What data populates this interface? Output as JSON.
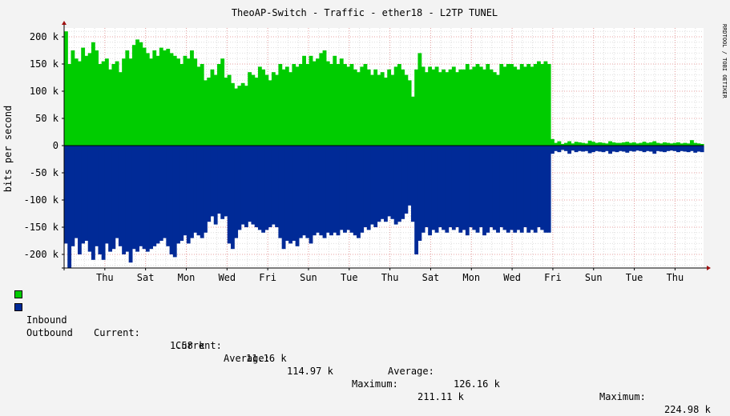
{
  "title": "TheoAP-Switch - Traffic - ether18 - L2TP TUNEL",
  "watermark": "RRDTOOL / TOBI OETIKER",
  "colors": {
    "background": "#f3f3f3",
    "canvas": "#ffffff",
    "grid_minor": "#dedede",
    "grid_major": "#e7a0a0",
    "inbound": "#00cc00",
    "outbound": "#002a97",
    "axis_arrow": "#a01010"
  },
  "chart_data": {
    "type": "area",
    "ylabel": "bits per second",
    "ylim": [
      -225000,
      225000
    ],
    "y_ticks": [
      {
        "value": 200000,
        "label": "200 k"
      },
      {
        "value": 150000,
        "label": "150 k"
      },
      {
        "value": 100000,
        "label": "100 k"
      },
      {
        "value": 50000,
        "label": "50 k"
      },
      {
        "value": 0,
        "label": "0"
      },
      {
        "value": -50000,
        "label": "-50 k"
      },
      {
        "value": -100000,
        "label": "-100 k"
      },
      {
        "value": -150000,
        "label": "-150 k"
      },
      {
        "value": -200000,
        "label": "-200 k"
      }
    ],
    "x_range_days": 15.7,
    "x_ticks": [
      {
        "day": 1,
        "label": "Thu"
      },
      {
        "day": 2,
        "label": "Sat"
      },
      {
        "day": 3,
        "label": "Mon"
      },
      {
        "day": 4,
        "label": "Wed"
      },
      {
        "day": 5,
        "label": "Fri"
      },
      {
        "day": 6,
        "label": "Sun"
      },
      {
        "day": 7,
        "label": "Tue"
      },
      {
        "day": 8,
        "label": "Thu"
      },
      {
        "day": 9,
        "label": "Sat"
      },
      {
        "day": 10,
        "label": "Mon"
      },
      {
        "day": 11,
        "label": "Wed"
      },
      {
        "day": 12,
        "label": "Fri"
      },
      {
        "day": 13,
        "label": "Sun"
      },
      {
        "day": 14,
        "label": "Tue"
      },
      {
        "day": 15,
        "label": "Thu"
      }
    ],
    "series": [
      {
        "name": "Inbound",
        "direction": "up",
        "values": [
          210000,
          150000,
          175000,
          160000,
          155000,
          180000,
          165000,
          170000,
          190000,
          175000,
          150000,
          155000,
          160000,
          140000,
          150000,
          155000,
          135000,
          160000,
          175000,
          160000,
          185000,
          195000,
          190000,
          180000,
          170000,
          160000,
          175000,
          165000,
          180000,
          175000,
          178000,
          170000,
          165000,
          160000,
          150000,
          165000,
          160000,
          175000,
          160000,
          145000,
          150000,
          120000,
          125000,
          140000,
          130000,
          150000,
          160000,
          125000,
          130000,
          115000,
          105000,
          110000,
          115000,
          110000,
          135000,
          130000,
          125000,
          145000,
          140000,
          130000,
          120000,
          135000,
          130000,
          150000,
          140000,
          145000,
          135000,
          150000,
          145000,
          150000,
          165000,
          150000,
          165000,
          155000,
          160000,
          170000,
          175000,
          155000,
          150000,
          165000,
          150000,
          160000,
          150000,
          145000,
          150000,
          140000,
          135000,
          145000,
          150000,
          140000,
          130000,
          140000,
          130000,
          135000,
          125000,
          140000,
          130000,
          145000,
          150000,
          140000,
          130000,
          120000,
          90000,
          140000,
          170000,
          145000,
          135000,
          145000,
          140000,
          145000,
          135000,
          140000,
          135000,
          140000,
          145000,
          135000,
          140000,
          140000,
          150000,
          140000,
          145000,
          150000,
          145000,
          140000,
          150000,
          140000,
          135000,
          130000,
          150000,
          145000,
          150000,
          150000,
          145000,
          140000,
          150000,
          145000,
          150000,
          145000,
          150000,
          155000,
          150000,
          155000,
          150000,
          12000,
          5000,
          8000,
          3000,
          5000,
          8000,
          4000,
          7000,
          6000,
          5000,
          4000,
          9000,
          7000,
          5000,
          6000,
          5000,
          4000,
          8000,
          6000,
          5000,
          5000,
          6000,
          7000,
          5000,
          6000,
          4000,
          5000,
          7000,
          5000,
          6000,
          8000,
          5000,
          4000,
          6000,
          5000,
          4000,
          5000,
          6000,
          4000,
          5000,
          4000,
          10000,
          5000,
          4000,
          3000
        ],
        "current": "1.58 k",
        "average": "114.97 k",
        "maximum": "211.11 k"
      },
      {
        "name": "Outbound",
        "direction": "down",
        "values": [
          180000,
          225000,
          185000,
          170000,
          200000,
          180000,
          175000,
          195000,
          210000,
          185000,
          200000,
          210000,
          180000,
          195000,
          190000,
          170000,
          185000,
          200000,
          195000,
          215000,
          190000,
          195000,
          185000,
          190000,
          195000,
          190000,
          185000,
          180000,
          175000,
          170000,
          185000,
          200000,
          205000,
          180000,
          175000,
          165000,
          180000,
          170000,
          160000,
          165000,
          170000,
          160000,
          140000,
          130000,
          145000,
          125000,
          135000,
          130000,
          180000,
          190000,
          170000,
          155000,
          145000,
          150000,
          140000,
          145000,
          150000,
          155000,
          160000,
          155000,
          150000,
          145000,
          150000,
          170000,
          190000,
          175000,
          180000,
          175000,
          185000,
          170000,
          165000,
          170000,
          180000,
          165000,
          160000,
          165000,
          170000,
          160000,
          165000,
          160000,
          165000,
          155000,
          160000,
          155000,
          160000,
          165000,
          170000,
          160000,
          150000,
          155000,
          145000,
          150000,
          140000,
          135000,
          140000,
          130000,
          135000,
          145000,
          140000,
          135000,
          125000,
          110000,
          140000,
          200000,
          175000,
          160000,
          150000,
          165000,
          155000,
          160000,
          150000,
          155000,
          160000,
          150000,
          155000,
          150000,
          160000,
          155000,
          165000,
          150000,
          155000,
          160000,
          150000,
          165000,
          160000,
          150000,
          155000,
          160000,
          150000,
          155000,
          160000,
          155000,
          160000,
          155000,
          160000,
          150000,
          160000,
          155000,
          160000,
          150000,
          155000,
          160000,
          160000,
          15000,
          10000,
          12000,
          8000,
          10000,
          15000,
          9000,
          12000,
          10000,
          11000,
          10000,
          14000,
          12000,
          10000,
          11000,
          12000,
          10000,
          15000,
          11000,
          12000,
          10000,
          11000,
          13000,
          10000,
          11000,
          9000,
          10000,
          12000,
          10000,
          11000,
          15000,
          10000,
          11000,
          12000,
          10000,
          9000,
          10000,
          12000,
          10000,
          11000,
          12000,
          10000,
          13000,
          11000,
          12000
        ],
        "current": "11.16 k",
        "average": "126.16 k",
        "maximum": "224.98 k"
      }
    ]
  },
  "legend": {
    "inbound": {
      "label": "Inbound",
      "current_label": "Current:",
      "average_label": "Average:",
      "maximum_label": "Maximum:"
    },
    "outbound": {
      "label": "Outbound",
      "current_label": "Current:",
      "average_label": "Average:",
      "maximum_label": "Maximum:"
    }
  }
}
